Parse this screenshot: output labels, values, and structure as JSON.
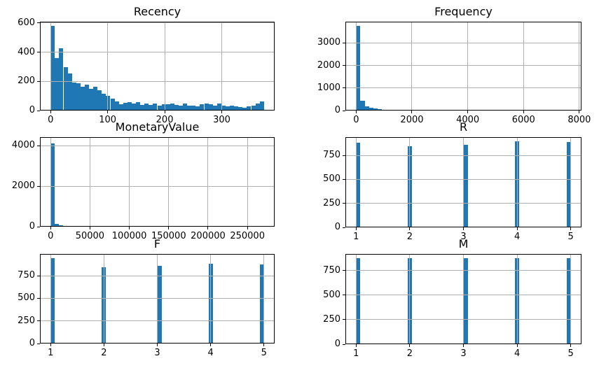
{
  "figure": {
    "bar_color": "#1f77b4",
    "grid_color": "#b0b0b0",
    "spine_color": "#000000",
    "text_color": "#000000",
    "background_color": "#ffffff"
  },
  "chart_data": [
    {
      "type": "bar",
      "subtype": "histogram",
      "title": "Recency",
      "xlim": [
        -18.7,
        392.7
      ],
      "ylim": [
        0,
        609
      ],
      "xticks": [
        0,
        100,
        200,
        300
      ],
      "yticks": [
        0,
        200,
        400,
        600
      ],
      "grid": true,
      "bin_start": 0,
      "bin_width": 7.48,
      "counts": [
        580,
        360,
        428,
        296,
        253,
        192,
        186,
        162,
        176,
        150,
        165,
        138,
        115,
        100,
        80,
        62,
        42,
        55,
        60,
        46,
        56,
        38,
        46,
        40,
        46,
        33,
        42,
        44,
        50,
        40,
        36,
        46,
        33,
        36,
        29,
        43,
        47,
        41,
        36,
        46,
        34,
        28,
        32,
        30,
        24,
        17,
        27,
        34,
        46,
        64
      ]
    },
    {
      "type": "bar",
      "subtype": "histogram",
      "title": "Frequency",
      "xlim": [
        -385,
        8078
      ],
      "ylim": [
        0,
        3940
      ],
      "xticks": [
        0,
        2000,
        4000,
        6000,
        8000
      ],
      "yticks": [
        0,
        1000,
        2000,
        3000
      ],
      "grid": true,
      "bin_start": 0,
      "bin_width": 153.9,
      "counts": [
        3750,
        430,
        190,
        120,
        80,
        55,
        45,
        40,
        35
      ]
    },
    {
      "type": "bar",
      "subtype": "histogram",
      "title": "MonetaryValue",
      "xlim": [
        -13550,
        284550
      ],
      "ylim": [
        0,
        4414
      ],
      "xticks": [
        0,
        50000,
        100000,
        150000,
        200000,
        250000
      ],
      "yticks": [
        0,
        2000,
        4000
      ],
      "grid": true,
      "bin_start": 0,
      "bin_width": 5420,
      "counts": [
        4100,
        140,
        60,
        25
      ]
    },
    {
      "type": "bar",
      "subtype": "histogram",
      "title": "R",
      "xlim": [
        0.8,
        5.2
      ],
      "ylim": [
        0,
        940
      ],
      "xticks": [
        1,
        2,
        3,
        4,
        5
      ],
      "yticks": [
        0,
        250,
        500,
        750
      ],
      "grid": true,
      "bin_width": 0.08,
      "bins": [
        {
          "left": 1.0,
          "count": 880
        },
        {
          "left": 1.96,
          "count": 845
        },
        {
          "left": 3.0,
          "count": 860
        },
        {
          "left": 3.96,
          "count": 895
        },
        {
          "left": 4.92,
          "count": 890
        }
      ]
    },
    {
      "type": "bar",
      "subtype": "histogram",
      "title": "F",
      "xlim": [
        0.8,
        5.2
      ],
      "ylim": [
        0,
        992
      ],
      "xticks": [
        1,
        2,
        3,
        4,
        5
      ],
      "yticks": [
        0,
        250,
        500,
        750
      ],
      "grid": true,
      "bin_width": 0.08,
      "bins": [
        {
          "left": 1.0,
          "count": 945
        },
        {
          "left": 1.96,
          "count": 845
        },
        {
          "left": 3.0,
          "count": 860
        },
        {
          "left": 3.96,
          "count": 880
        },
        {
          "left": 4.92,
          "count": 875
        }
      ]
    },
    {
      "type": "bar",
      "subtype": "histogram",
      "title": "M",
      "xlim": [
        0.8,
        5.2
      ],
      "ylim": [
        0,
        919
      ],
      "xticks": [
        1,
        2,
        3,
        4,
        5
      ],
      "yticks": [
        0,
        250,
        500,
        750
      ],
      "grid": true,
      "bin_width": 0.08,
      "bins": [
        {
          "left": 1.0,
          "count": 875
        },
        {
          "left": 1.96,
          "count": 875
        },
        {
          "left": 3.0,
          "count": 875
        },
        {
          "left": 3.96,
          "count": 875
        },
        {
          "left": 4.92,
          "count": 875
        }
      ]
    }
  ]
}
